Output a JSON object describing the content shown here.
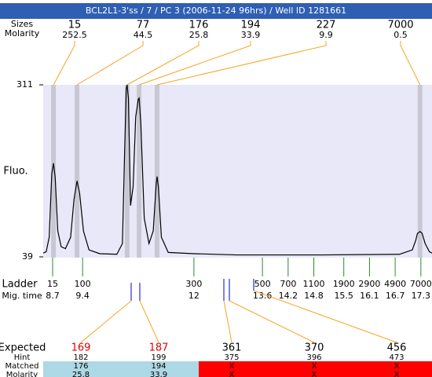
{
  "chart_data": {
    "type": "line",
    "title": "BCL2L1-3'ss / 7 / PC 3 (2006-11-24 96hrs) / Well ID 1281661",
    "ylabel": "Fluo.",
    "xlim": [
      8.48,
      17.56
    ],
    "ylim": [
      39,
      311
    ],
    "yticks": [
      39,
      311
    ],
    "color": "#000000",
    "x": [
      8.48,
      8.55,
      8.62,
      8.68,
      8.72,
      8.76,
      8.82,
      8.9,
      9.0,
      9.12,
      9.2,
      9.27,
      9.33,
      9.42,
      9.55,
      9.8,
      10.2,
      10.33,
      10.38,
      10.42,
      10.44,
      10.47,
      10.52,
      10.58,
      10.64,
      10.7,
      10.72,
      10.76,
      10.84,
      10.95,
      11.05,
      11.12,
      11.14,
      11.17,
      11.24,
      11.4,
      12.0,
      13.0,
      15.0,
      16.8,
      17.1,
      17.18,
      17.22,
      17.28,
      17.33,
      17.4,
      17.5,
      17.56
    ],
    "values": [
      45,
      47,
      70,
      170,
      187,
      165,
      80,
      55,
      52,
      70,
      130,
      159,
      140,
      80,
      50,
      44,
      43,
      60,
      200,
      305,
      311,
      290,
      120,
      150,
      260,
      288,
      290,
      250,
      100,
      60,
      80,
      155,
      166,
      150,
      70,
      46,
      44,
      42,
      42,
      43,
      50,
      65,
      76,
      79,
      76,
      60,
      47,
      45
    ],
    "peaks": {
      "size_label": "Sizes",
      "molarity_label": "Molarity",
      "sizes": [
        15,
        77,
        176,
        194,
        227,
        7000
      ],
      "molarity": [
        252.5,
        44.5,
        25.8,
        33.9,
        9.9,
        0.5
      ],
      "x": [
        8.72,
        9.27,
        10.44,
        10.72,
        11.14,
        17.28
      ]
    },
    "ladder": {
      "label": "Ladder",
      "time_label": "Mig. time",
      "sizes": [
        15,
        100,
        300,
        500,
        700,
        1100,
        1900,
        2900,
        4900,
        7000
      ],
      "times": [
        8.7,
        9.4,
        12,
        13.6,
        14.2,
        14.8,
        15.5,
        16.1,
        16.7,
        17.3
      ]
    },
    "expected": {
      "labels": [
        "Expected",
        "Hint",
        "Matched",
        "Molarity"
      ],
      "expected": [
        169,
        187,
        361,
        370,
        456
      ],
      "hint": [
        182,
        199,
        375,
        396,
        473
      ],
      "matched": [
        176,
        194,
        "X",
        "X",
        "X"
      ],
      "molarity": [
        25.8,
        33.9,
        "X",
        "X",
        "X"
      ]
    }
  }
}
